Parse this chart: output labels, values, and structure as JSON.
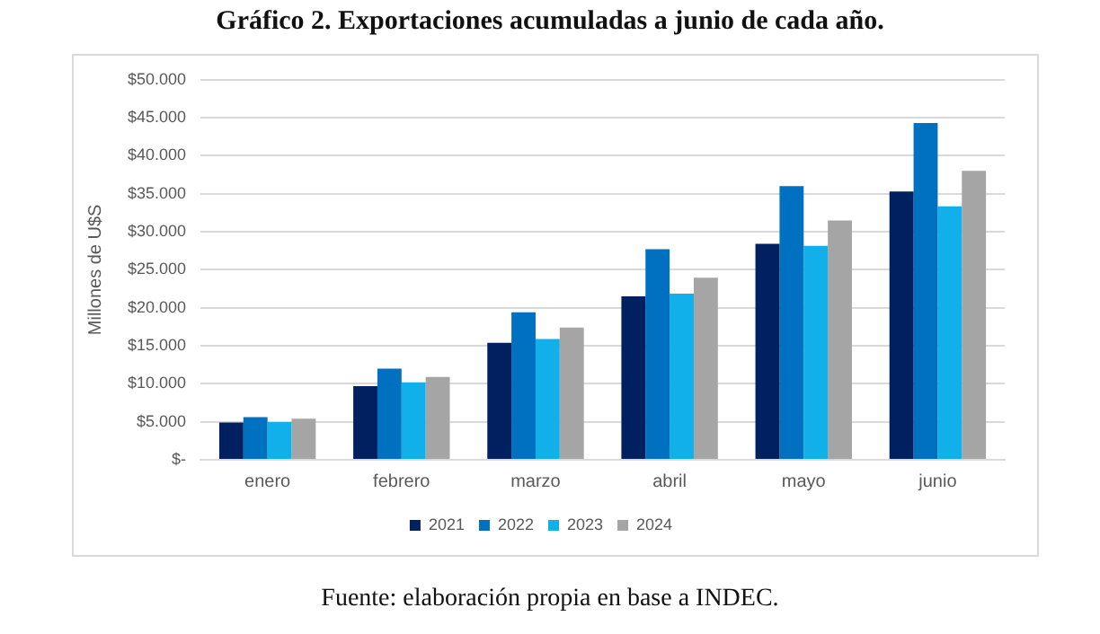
{
  "chart_data": {
    "type": "bar",
    "title": "Gráfico 2. Exportaciones acumuladas a junio de cada año.",
    "ylabel": "Millones de U$S",
    "categories": [
      "enero",
      "febrero",
      "marzo",
      "abril",
      "mayo",
      "junio"
    ],
    "series": [
      {
        "name": "2021",
        "color": "#002060",
        "values": [
          4900,
          9700,
          15400,
          21500,
          28400,
          35300
        ]
      },
      {
        "name": "2022",
        "color": "#0070c0",
        "values": [
          5600,
          12000,
          19400,
          27700,
          36000,
          44300
        ]
      },
      {
        "name": "2023",
        "color": "#12b0ea",
        "values": [
          4950,
          10200,
          15900,
          21850,
          28150,
          33350
        ]
      },
      {
        "name": "2024",
        "color": "#a5a5a5",
        "values": [
          5400,
          10900,
          17400,
          23950,
          31500,
          38000
        ]
      }
    ],
    "ylim": [
      0,
      50000
    ],
    "yticks": [
      {
        "value": 0,
        "label": "$-"
      },
      {
        "value": 5000,
        "label": "$5.000"
      },
      {
        "value": 10000,
        "label": "$10.000"
      },
      {
        "value": 15000,
        "label": "$15.000"
      },
      {
        "value": 20000,
        "label": "$20.000"
      },
      {
        "value": 25000,
        "label": "$25.000"
      },
      {
        "value": 30000,
        "label": "$30.000"
      },
      {
        "value": 35000,
        "label": "$35.000"
      },
      {
        "value": 40000,
        "label": "$40.000"
      },
      {
        "value": 45000,
        "label": "$45.000"
      },
      {
        "value": 50000,
        "label": "$50.000"
      }
    ],
    "grid": "y",
    "legend": "bottom",
    "annotations": [
      "Fuente: elaboración propia en base a INDEC."
    ]
  }
}
